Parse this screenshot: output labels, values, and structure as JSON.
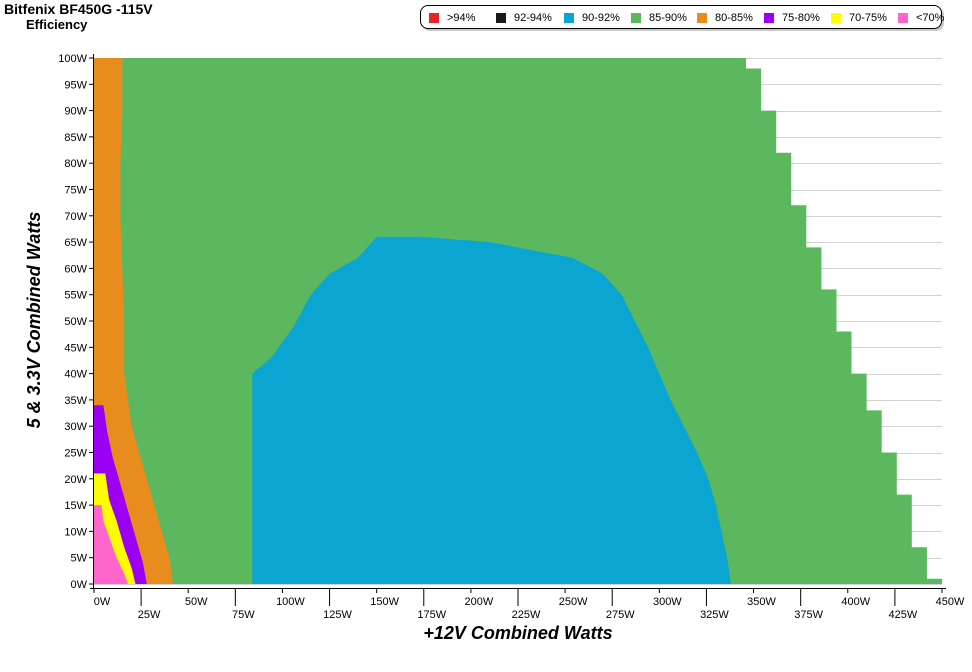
{
  "header": {
    "title": "Bitfenix BF450G -115V",
    "subtitle": "Efficiency"
  },
  "legend": [
    {
      "label": ">94%",
      "color": "#e8232a"
    },
    {
      "label": "92-94%",
      "color": "#1a1a1a"
    },
    {
      "label": "90-92%",
      "color": "#0aa6d1"
    },
    {
      "label": "85-90%",
      "color": "#5cb85f"
    },
    {
      "label": "80-85%",
      "color": "#e88c1e"
    },
    {
      "label": "75-80%",
      "color": "#9b00f5"
    },
    {
      "label": "70-75%",
      "color": "#fdfc00"
    },
    {
      "label": "<70%",
      "color": "#ff66cc"
    }
  ],
  "chart_data": {
    "type": "heatmap",
    "title": "Bitfenix BF450G -115V",
    "subtitle": "Efficiency",
    "xlabel": "+12V Combined Watts",
    "ylabel": "5 & 3.3V Combined Watts",
    "xlim": [
      0,
      450
    ],
    "ylim": [
      0,
      100
    ],
    "x_ticks": [
      "0W",
      "25W",
      "50W",
      "75W",
      "100W",
      "125W",
      "150W",
      "175W",
      "200W",
      "225W",
      "250W",
      "275W",
      "300W",
      "325W",
      "350W",
      "375W",
      "400W",
      "425W",
      "450W"
    ],
    "y_ticks": [
      "0W",
      "5W",
      "10W",
      "15W",
      "20W",
      "25W",
      "30W",
      "35W",
      "40W",
      "45W",
      "50W",
      "55W",
      "60W",
      "65W",
      "70W",
      "75W",
      "80W",
      "85W",
      "90W",
      "95W",
      "100W"
    ],
    "grid": true,
    "legend_position": "top-right",
    "region_order": [
      "85-90%",
      "80-85%",
      "90-92%",
      "75-80%",
      "70-75%",
      "<70%"
    ],
    "regions": [
      {
        "band": "85-90%",
        "color": "#5cb85f",
        "boundary": [
          [
            0,
            0
          ],
          [
            450,
            0
          ],
          [
            450,
            1
          ],
          [
            442,
            1
          ],
          [
            442,
            7
          ],
          [
            434,
            7
          ],
          [
            434,
            17
          ],
          [
            426,
            17
          ],
          [
            426,
            25
          ],
          [
            418,
            25
          ],
          [
            418,
            33
          ],
          [
            410,
            33
          ],
          [
            410,
            40
          ],
          [
            402,
            40
          ],
          [
            402,
            48
          ],
          [
            394,
            48
          ],
          [
            394,
            56
          ],
          [
            386,
            56
          ],
          [
            386,
            64
          ],
          [
            378,
            64
          ],
          [
            378,
            72
          ],
          [
            370,
            72
          ],
          [
            370,
            82
          ],
          [
            362,
            82
          ],
          [
            362,
            90
          ],
          [
            354,
            90
          ],
          [
            354,
            98
          ],
          [
            346,
            98
          ],
          [
            346,
            100
          ],
          [
            0,
            100
          ]
        ]
      },
      {
        "band": "80-85%",
        "color": "#e88c1e",
        "boundary": [
          [
            0,
            0
          ],
          [
            42,
            0
          ],
          [
            40,
            5
          ],
          [
            36,
            10
          ],
          [
            32,
            15
          ],
          [
            28,
            20
          ],
          [
            24,
            25
          ],
          [
            20,
            30
          ],
          [
            18,
            35
          ],
          [
            16,
            40
          ],
          [
            16,
            50
          ],
          [
            15,
            60
          ],
          [
            14,
            70
          ],
          [
            14,
            80
          ],
          [
            15,
            90
          ],
          [
            15,
            100
          ],
          [
            0,
            100
          ]
        ]
      },
      {
        "band": "90-92%",
        "color": "#0aa6d1",
        "boundary": [
          [
            87,
            0
          ],
          [
            338,
            0
          ],
          [
            336,
            5
          ],
          [
            333,
            10
          ],
          [
            330,
            15
          ],
          [
            326,
            20
          ],
          [
            320,
            25
          ],
          [
            313,
            30
          ],
          [
            306,
            35
          ],
          [
            300,
            40
          ],
          [
            294,
            45
          ],
          [
            287,
            50
          ],
          [
            280,
            55
          ],
          [
            270,
            59
          ],
          [
            254,
            62
          ],
          [
            210,
            65
          ],
          [
            173,
            66
          ],
          [
            150,
            66
          ],
          [
            140,
            62
          ],
          [
            125,
            59
          ],
          [
            115,
            55
          ],
          [
            106,
            49
          ],
          [
            94,
            43
          ],
          [
            84,
            40
          ],
          [
            84,
            0
          ]
        ]
      },
      {
        "band": "75-80%",
        "color": "#9b00f5",
        "boundary": [
          [
            0,
            0
          ],
          [
            28,
            0
          ],
          [
            26,
            4
          ],
          [
            22,
            9
          ],
          [
            18,
            14
          ],
          [
            14,
            19
          ],
          [
            10,
            24
          ],
          [
            7,
            29
          ],
          [
            5,
            34
          ],
          [
            0,
            34
          ]
        ]
      },
      {
        "band": "70-75%",
        "color": "#fdfc00",
        "boundary": [
          [
            0,
            0
          ],
          [
            22,
            0
          ],
          [
            20,
            3
          ],
          [
            16,
            7
          ],
          [
            12,
            12
          ],
          [
            8,
            16
          ],
          [
            6,
            21
          ],
          [
            0,
            21
          ]
        ]
      },
      {
        "band": "<70%",
        "color": "#ff66cc",
        "boundary": [
          [
            0,
            0
          ],
          [
            18,
            0
          ],
          [
            16,
            2
          ],
          [
            12,
            5
          ],
          [
            8,
            9
          ],
          [
            5,
            12
          ],
          [
            4,
            15
          ],
          [
            0,
            15
          ]
        ]
      }
    ]
  }
}
